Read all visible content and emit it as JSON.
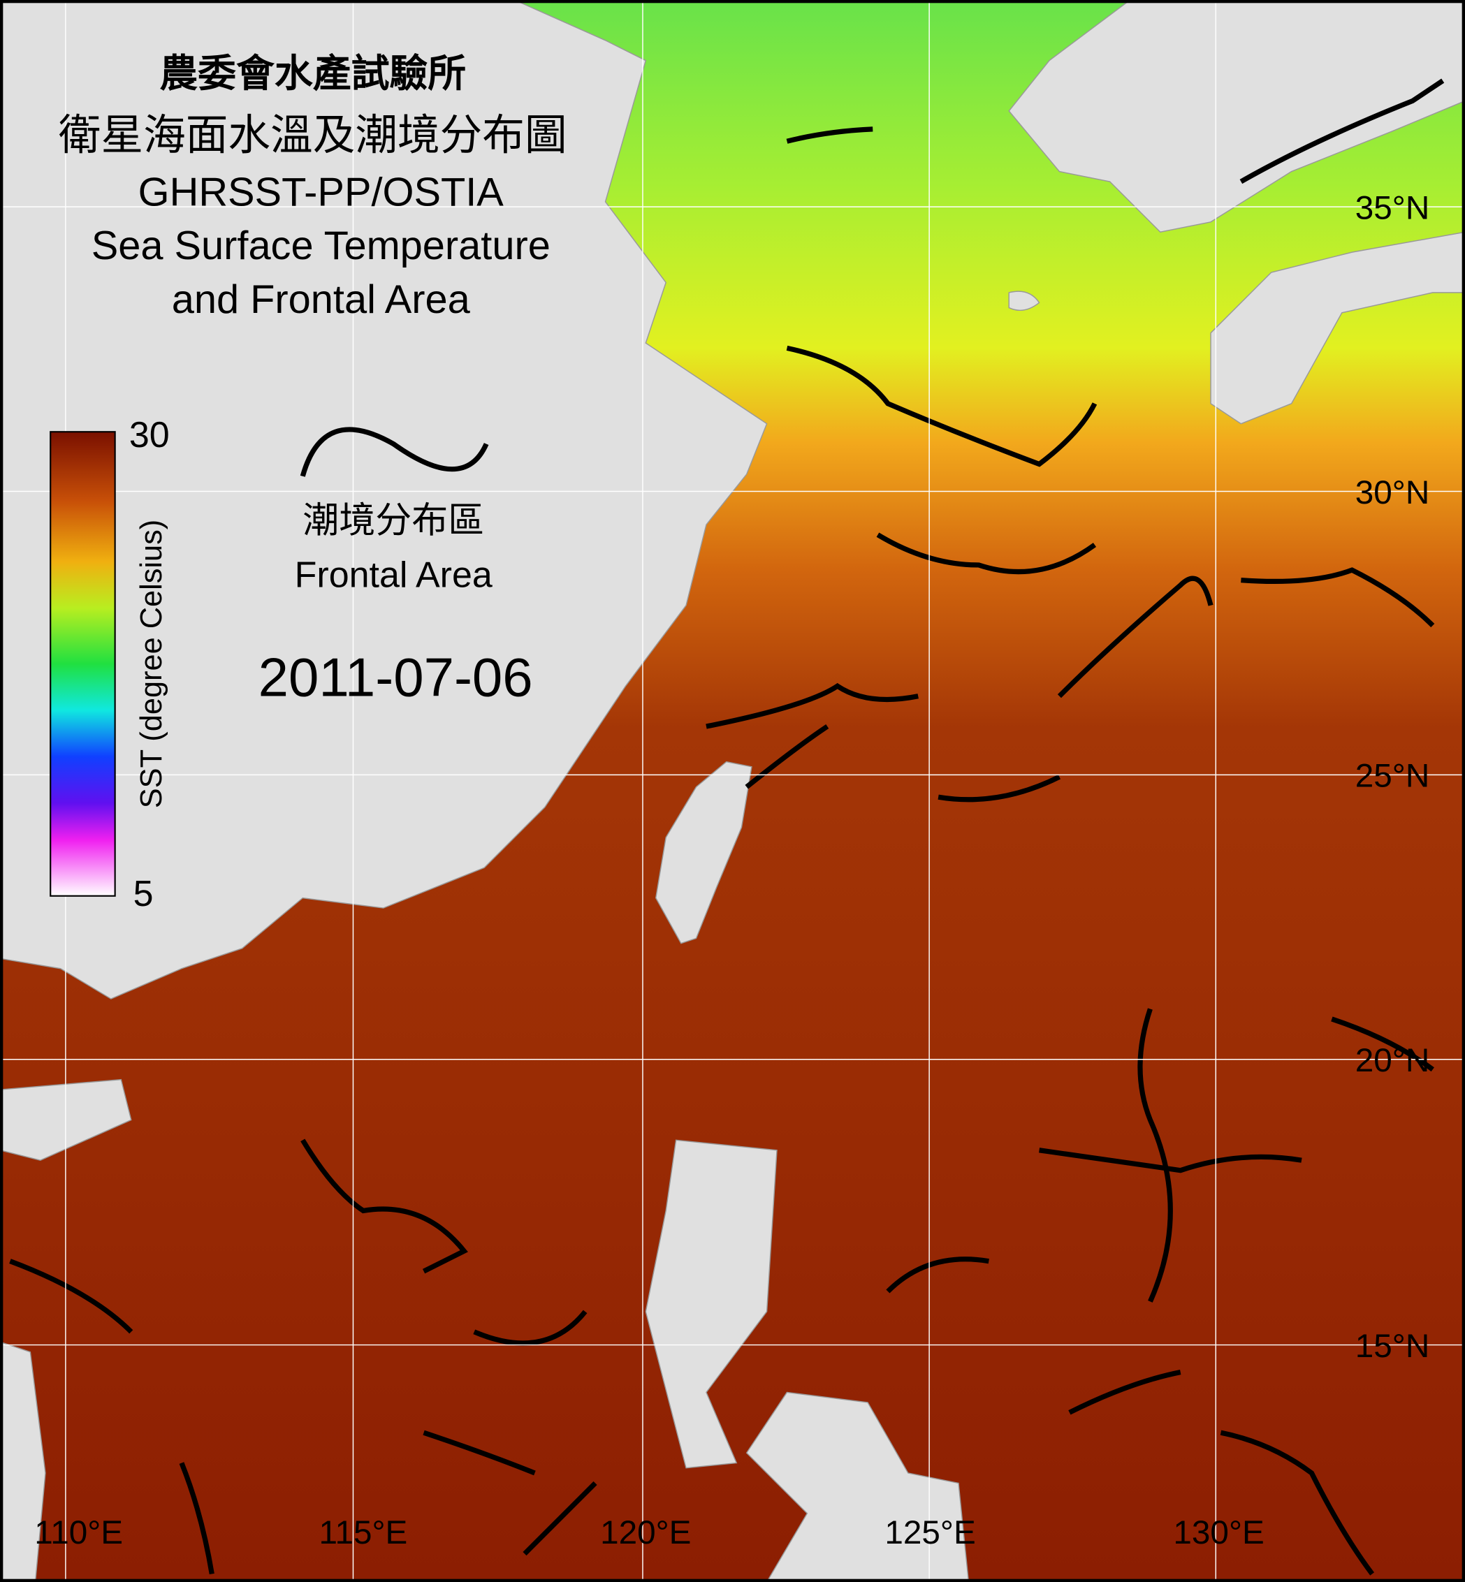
{
  "title": {
    "line1": "農委會水產試驗所",
    "line2": "衛星海面水溫及潮境分布圖",
    "line3": "GHRSST-PP/OSTIA",
    "line4": "Sea Surface Temperature",
    "line5": "and Frontal Area"
  },
  "colorbar": {
    "label": "SST (degree Celsius)",
    "max": "30",
    "min": "5"
  },
  "legend": {
    "label_zh": "潮境分布區",
    "label_en": "Frontal Area"
  },
  "date": "2011-07-06",
  "latitude_labels": [
    "35°N",
    "30°N",
    "25°N",
    "20°N",
    "15°N"
  ],
  "longitude_labels": [
    "110°E",
    "115°E",
    "120°E",
    "125°E",
    "130°E"
  ]
}
